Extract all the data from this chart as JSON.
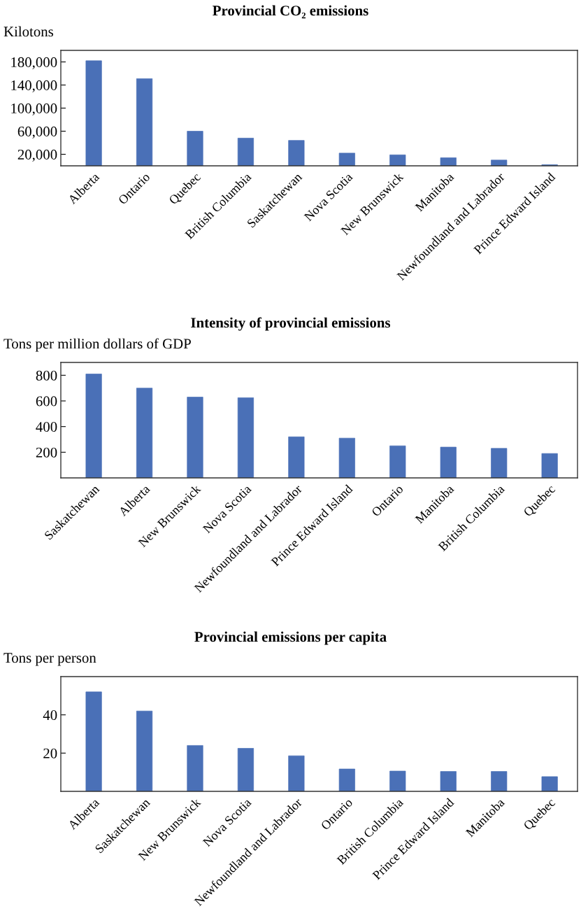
{
  "chart_data": [
    {
      "type": "bar",
      "title": "Provincial CO₂ emissions",
      "ylabel": "Kilotons",
      "categories": [
        "Alberta",
        "Ontario",
        "Quebec",
        "British Columbia",
        "Saskatchewan",
        "Nova Scotia",
        "New Brunswick",
        "Manitoba",
        "Newfoundland and Labrador",
        "Prince Edward Island"
      ],
      "values": [
        182000,
        151000,
        60000,
        48000,
        44000,
        22000,
        19000,
        14000,
        10000,
        2000
      ],
      "color": "#4a70b7",
      "ylim": [
        0,
        200000
      ],
      "yticks": [
        {
          "value": 20000,
          "label": "20,000"
        },
        {
          "value": 60000,
          "label": "60,000"
        },
        {
          "value": 100000,
          "label": "100,000"
        },
        {
          "value": 140000,
          "label": "140,000"
        },
        {
          "value": 180000,
          "label": "180,000"
        }
      ],
      "grid": false,
      "legend": false
    },
    {
      "type": "bar",
      "title": "Intensity of provincial emissions",
      "ylabel": "Tons per million dollars of GDP",
      "categories": [
        "Saskatchewan",
        "Alberta",
        "New Brunswick",
        "Nova Scotia",
        "Newfoundland and Labrador",
        "Prince Edward Island",
        "Ontario",
        "Manitoba",
        "British Columbia",
        "Quebec"
      ],
      "values": [
        810,
        700,
        630,
        625,
        320,
        310,
        250,
        240,
        230,
        190
      ],
      "color": "#4a70b7",
      "ylim": [
        0,
        900
      ],
      "yticks": [
        200,
        400,
        600,
        800
      ],
      "grid": false,
      "legend": false
    },
    {
      "type": "bar",
      "title": "Provincial emissions per capita",
      "ylabel": "Tons per person",
      "categories": [
        "Alberta",
        "Saskatchewan",
        "New Brunswick",
        "Nova Scotia",
        "Newfoundland and Labrador",
        "Ontario",
        "British Columbia",
        "Prince Edward Island",
        "Manitoba",
        "Quebec"
      ],
      "values": [
        52,
        42,
        24,
        22.5,
        18.6,
        11.7,
        10.6,
        10.4,
        10.4,
        7.7
      ],
      "color": "#4a70b7",
      "ylim": [
        0,
        60
      ],
      "yticks": [
        20,
        40
      ],
      "grid": false,
      "legend": false
    }
  ]
}
